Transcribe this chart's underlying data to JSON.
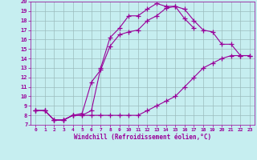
{
  "xlabel": "Windchill (Refroidissement éolien,°C)",
  "xlim": [
    -0.5,
    23.5
  ],
  "ylim": [
    7,
    20
  ],
  "xticks": [
    0,
    1,
    2,
    3,
    4,
    5,
    6,
    7,
    8,
    9,
    10,
    11,
    12,
    13,
    14,
    15,
    16,
    17,
    18,
    19,
    20,
    21,
    22,
    23
  ],
  "yticks": [
    7,
    8,
    9,
    10,
    11,
    12,
    13,
    14,
    15,
    16,
    17,
    18,
    19,
    20
  ],
  "bg_color": "#c6eef0",
  "grid_color": "#9bbcbd",
  "line_color": "#990099",
  "lines": [
    {
      "x": [
        0,
        1,
        2,
        3,
        4,
        5,
        6,
        7,
        8,
        9,
        10,
        11,
        12,
        13,
        14,
        15,
        16,
        17,
        18,
        19,
        20,
        21,
        22,
        23
      ],
      "y": [
        8.5,
        8.5,
        7.5,
        7.5,
        8.0,
        8.0,
        8.0,
        8.0,
        8.0,
        8.0,
        8.0,
        8.0,
        8.5,
        9.0,
        9.5,
        10.0,
        11.0,
        12.0,
        13.0,
        13.5,
        14.0,
        14.3,
        14.3,
        14.3
      ]
    },
    {
      "x": [
        0,
        1,
        2,
        3,
        4,
        5,
        6,
        7,
        8,
        9,
        10,
        11,
        12,
        13,
        14,
        15,
        16,
        17,
        18,
        19,
        20,
        21,
        22,
        23
      ],
      "y": [
        8.5,
        8.5,
        7.5,
        7.5,
        8.0,
        8.2,
        11.5,
        12.8,
        15.3,
        16.5,
        16.8,
        17.0,
        18.0,
        18.5,
        19.3,
        19.5,
        19.2,
        18.0,
        17.0,
        16.8,
        15.5,
        15.5,
        14.3,
        14.3
      ]
    },
    {
      "x": [
        0,
        1,
        2,
        3,
        4,
        5,
        6,
        7,
        8,
        9,
        10,
        11,
        12,
        13,
        14,
        15,
        16,
        17,
        18,
        19,
        20,
        21,
        22,
        23
      ],
      "y": [
        8.5,
        8.5,
        7.5,
        7.5,
        8.0,
        8.0,
        8.5,
        13.0,
        16.2,
        17.2,
        18.5,
        18.5,
        19.2,
        19.8,
        19.5,
        19.5,
        18.2,
        17.2,
        null,
        null,
        null,
        null,
        null,
        null
      ]
    }
  ]
}
